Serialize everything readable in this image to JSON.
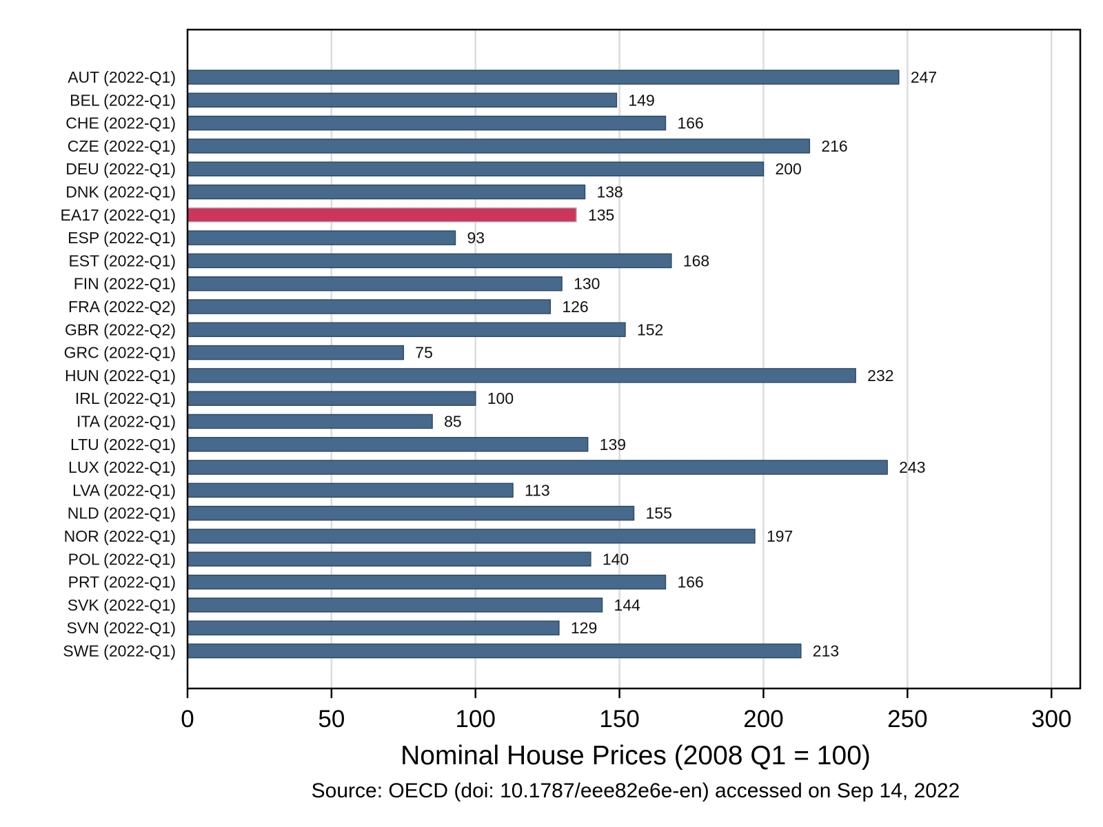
{
  "chart_data": {
    "type": "bar",
    "orientation": "horizontal",
    "categories": [
      "AUT (2022-Q1)",
      "BEL (2022-Q1)",
      "CHE (2022-Q1)",
      "CZE (2022-Q1)",
      "DEU (2022-Q1)",
      "DNK (2022-Q1)",
      "EA17 (2022-Q1)",
      "ESP (2022-Q1)",
      "EST (2022-Q1)",
      "FIN (2022-Q1)",
      "FRA (2022-Q2)",
      "GBR (2022-Q2)",
      "GRC (2022-Q1)",
      "HUN (2022-Q1)",
      "IRL (2022-Q1)",
      "ITA (2022-Q1)",
      "LTU (2022-Q1)",
      "LUX (2022-Q1)",
      "LVA (2022-Q1)",
      "NLD (2022-Q1)",
      "NOR (2022-Q1)",
      "POL (2022-Q1)",
      "PRT (2022-Q1)",
      "SVK (2022-Q1)",
      "SVN (2022-Q1)",
      "SWE (2022-Q1)"
    ],
    "values": [
      247,
      149,
      166,
      216,
      200,
      138,
      135,
      93,
      168,
      130,
      126,
      152,
      75,
      232,
      100,
      85,
      139,
      243,
      113,
      155,
      197,
      140,
      166,
      144,
      129,
      213
    ],
    "value_labels": [
      "247",
      "149",
      "166",
      "216",
      "200",
      "138",
      "135",
      "93",
      "168",
      "130",
      "126",
      "152",
      "75",
      "232",
      "100",
      "85",
      "139",
      "243",
      "113",
      "155",
      "197",
      "140",
      "166",
      "144",
      "129",
      "213"
    ],
    "highlight_index": 6,
    "xlabel": "Nominal House Prices (2008 Q1 = 100)",
    "ylabel": "",
    "xlim": [
      0,
      310
    ],
    "xticks": [
      0,
      50,
      100,
      150,
      200,
      250,
      300
    ],
    "xtick_labels": [
      "0",
      "50",
      "100",
      "150",
      "200",
      "250",
      "300"
    ],
    "grid": "vertical",
    "legend": "none",
    "source": "Source: OECD (doi: 10.1787/eee82e6e-en) accessed on Sep 14, 2022",
    "colors": {
      "bar": "#476a8c",
      "bar_stroke": "#2f4a66",
      "highlight": "#cd355d",
      "highlight_stroke": "#a8a8a8",
      "grid": "#dcdcdc",
      "axis": "#000000"
    }
  }
}
